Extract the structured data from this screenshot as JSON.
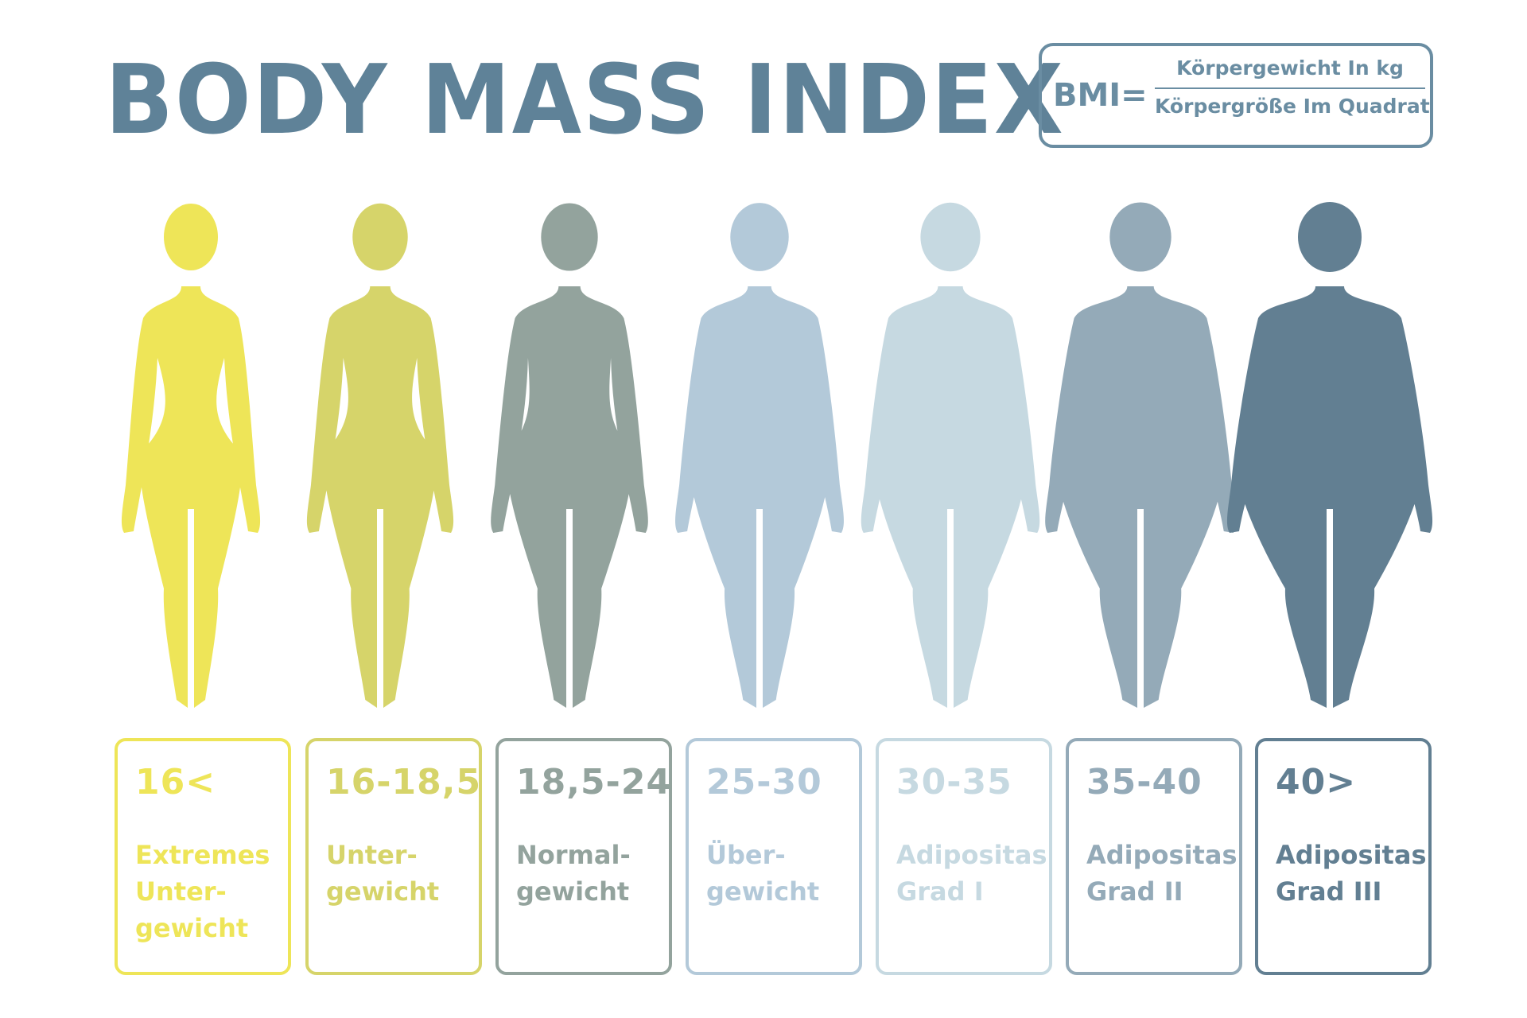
{
  "title": "BODY MASS INDEX",
  "formula": {
    "lhs": "BMI=",
    "numerator": "Körpergewicht In kg",
    "denominator": "Körpergröße Im Quadrat"
  },
  "colors": {
    "title": "#5f8298",
    "formula": "#6a8da2"
  },
  "categories": [
    {
      "range": "16<",
      "label": "Extremes\nUnter-\ngewicht",
      "color": "#eee558",
      "body_width": 0.0
    },
    {
      "range": "16-18,5",
      "label": "Unter-\ngewicht",
      "color": "#d6d46a",
      "body_width": 0.12
    },
    {
      "range": "18,5-24",
      "label": "Normal-\ngewicht",
      "color": "#93a39d",
      "body_width": 0.28
    },
    {
      "range": "25-30",
      "label": "Über-\ngewicht",
      "color": "#b3c9d9",
      "body_width": 0.45
    },
    {
      "range": "30-35",
      "label": "Adipositas\nGrad I",
      "color": "#c6d9e1",
      "body_width": 0.6
    },
    {
      "range": "35-40",
      "label": "Adipositas\nGrad II",
      "color": "#94aab8",
      "body_width": 0.78
    },
    {
      "range": "40>",
      "label": "Adipositas\nGrad III",
      "color": "#627f92",
      "body_width": 1.0
    }
  ]
}
